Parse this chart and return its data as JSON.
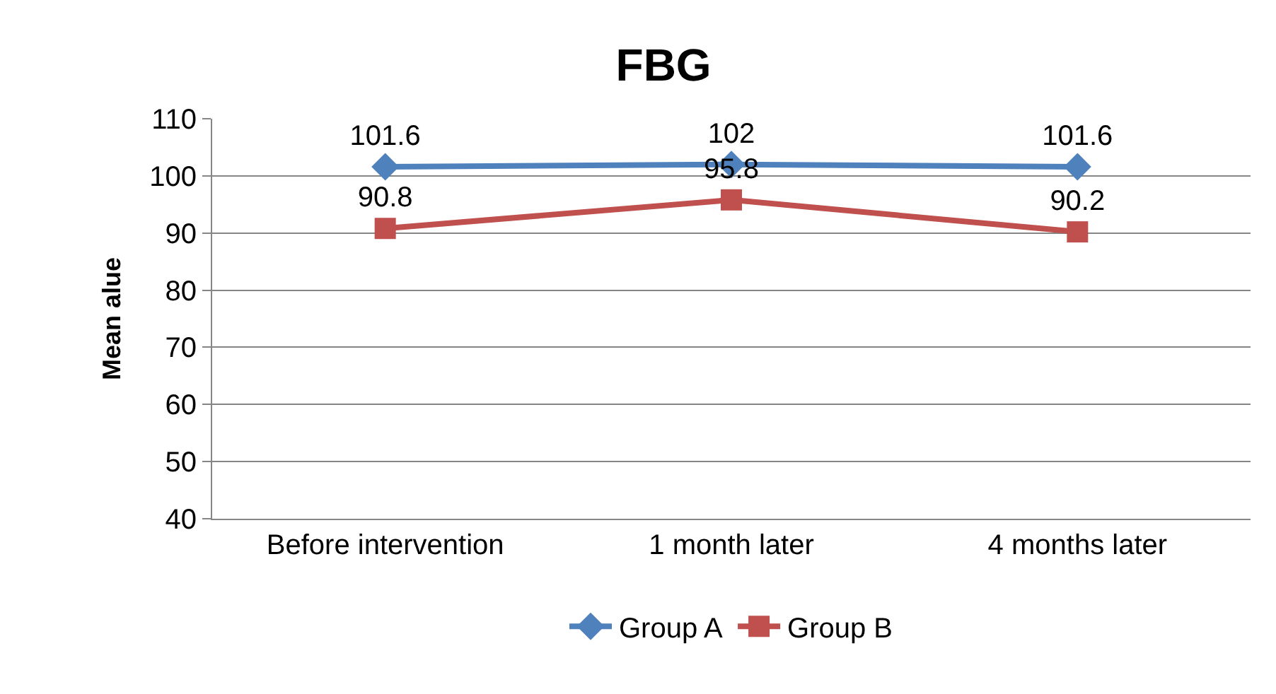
{
  "chart_data": {
    "type": "line",
    "title": "FBG",
    "ylabel": "Mean alue",
    "categories": [
      "Before intervention",
      "1 month later",
      "4 months later"
    ],
    "series": [
      {
        "name": "Group A",
        "color": "#4f81bd",
        "marker": "diamond",
        "values": [
          101.6,
          102,
          101.6
        ]
      },
      {
        "name": "Group B",
        "color": "#c0504d",
        "marker": "square",
        "values": [
          90.8,
          95.8,
          90.2
        ]
      }
    ],
    "ylim": [
      40,
      110
    ],
    "yticks": [
      40,
      50,
      60,
      70,
      80,
      90,
      100,
      110
    ],
    "grid": "y",
    "legend": "bottom",
    "data_labels": true,
    "line_style": "solid"
  }
}
